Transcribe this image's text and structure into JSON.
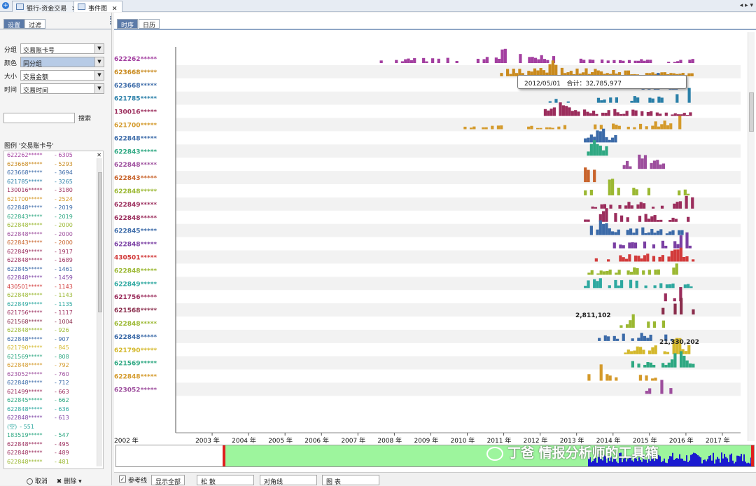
{
  "tabs": [
    {
      "label": "银行-资金交易",
      "active": false
    },
    {
      "label": "事件图",
      "active": true
    }
  ],
  "left_panel": {
    "tabs": [
      "设置",
      "过滤"
    ],
    "fields": [
      {
        "label": "分组",
        "value": "交易账卡号"
      },
      {
        "label": "颜色",
        "value": "同分组"
      },
      {
        "label": "大小",
        "value": "交易金额"
      },
      {
        "label": "时间",
        "value": "交易时间"
      }
    ],
    "search_button": "搜索",
    "legend_title": "图例 '交易账卡号'",
    "legend_items": [
      {
        "name": "622262*****",
        "count": "6305",
        "color": "#a33fa0"
      },
      {
        "name": "623668*****",
        "count": "5293",
        "color": "#c98a1e"
      },
      {
        "name": "623668*****",
        "count": "3694",
        "color": "#3b6aa8"
      },
      {
        "name": "621785*****",
        "count": "3265",
        "color": "#2a7fa8"
      },
      {
        "name": "130016*****",
        "count": "3180",
        "color": "#9b2d5c"
      },
      {
        "name": "621700*****",
        "count": "2524",
        "color": "#d49a2b"
      },
      {
        "name": "622848*****",
        "count": "2019",
        "color": "#3b6aa8"
      },
      {
        "name": "622843*****",
        "count": "2019",
        "color": "#2ea882"
      },
      {
        "name": "622848*****",
        "count": "2000",
        "color": "#9bb832"
      },
      {
        "name": "622848*****",
        "count": "2000",
        "color": "#9d4e9d"
      },
      {
        "name": "622843*****",
        "count": "2000",
        "color": "#c8632b"
      },
      {
        "name": "622849*****",
        "count": "1917",
        "color": "#9b2d5c"
      },
      {
        "name": "622848*****",
        "count": "1689",
        "color": "#9b2d5c"
      },
      {
        "name": "622845*****",
        "count": "1461",
        "color": "#3b6aa8"
      },
      {
        "name": "622848*****",
        "count": "1459",
        "color": "#7a3fa3"
      },
      {
        "name": "430501*****",
        "count": "1143",
        "color": "#d23b3b"
      },
      {
        "name": "622848*****",
        "count": "1143",
        "color": "#9bb832"
      },
      {
        "name": "622849*****",
        "count": "1135",
        "color": "#2ea8a0"
      },
      {
        "name": "621756*****",
        "count": "1117",
        "color": "#9b2d5c"
      },
      {
        "name": "621568*****",
        "count": "1004",
        "color": "#8a2d4c"
      },
      {
        "name": "622848*****",
        "count": "926",
        "color": "#9bb832"
      },
      {
        "name": "622848*****",
        "count": "907",
        "color": "#3b6aa8"
      },
      {
        "name": "621790*****",
        "count": "845",
        "color": "#d4b82b"
      },
      {
        "name": "621569*****",
        "count": "808",
        "color": "#2ea882"
      },
      {
        "name": "622848*****",
        "count": "792",
        "color": "#d49a2b"
      },
      {
        "name": "623052*****",
        "count": "760",
        "color": "#9d4e9d"
      },
      {
        "name": "622848*****",
        "count": "712",
        "color": "#3b6aa8"
      },
      {
        "name": "621499*****",
        "count": "663",
        "color": "#9b2d5c"
      },
      {
        "name": "622845*****",
        "count": "662",
        "color": "#2ea882"
      },
      {
        "name": "622848*****",
        "count": "636",
        "color": "#2ea8a0"
      },
      {
        "name": "622848*****",
        "count": "613",
        "color": "#7a3fa3"
      },
      {
        "name": "(空)",
        "count": "551",
        "color": "#2ea8a0",
        "plain": true
      },
      {
        "name": "183519*****",
        "count": "547",
        "color": "#2ea882"
      },
      {
        "name": "622848*****",
        "count": "495",
        "color": "#9b2d5c"
      },
      {
        "name": "622848*****",
        "count": "489",
        "color": "#9b2d5c"
      },
      {
        "name": "622848*****",
        "count": "481",
        "color": "#9bb832"
      }
    ],
    "footer": {
      "cancel": "取消",
      "delete": "删除"
    }
  },
  "view_tabs": [
    "时序",
    "日历"
  ],
  "tooltip": {
    "date": "2012/05/01",
    "sum_label": "合计：",
    "sum_value": "32,785,977"
  },
  "annotations": [
    "2,811,102",
    "21,330,202"
  ],
  "chart_data": {
    "type": "bar",
    "x_ticks": [
      "2002 年",
      "2003 年",
      "2004 年",
      "2005 年",
      "2006 年",
      "2007 年",
      "2008 年",
      "2009 年",
      "2010 年",
      "2011 年",
      "2012 年",
      "2013 年",
      "2014 年",
      "2015 年",
      "2016 年",
      "2017 年"
    ],
    "rows": [
      {
        "label": "622262*****",
        "color": "#a33fa0",
        "start": 2007.6,
        "end": 2016.2,
        "peak": 2011.0,
        "density": 0.55
      },
      {
        "label": "623668*****",
        "color": "#c98a1e",
        "start": 2010.9,
        "end": 2016.2,
        "peak": 2012.3,
        "density": 0.9
      },
      {
        "label": "623668*****",
        "color": "#3b6aa8",
        "start": 2014.7,
        "end": 2015.7,
        "peak": 2015.2,
        "density": 0.35
      },
      {
        "label": "621785*****",
        "color": "#2a7fa8",
        "start": 2011.9,
        "end": 2016.2,
        "peak": 2016.0,
        "density": 0.25
      },
      {
        "label": "130016*****",
        "color": "#9b2d5c",
        "start": 2012.1,
        "end": 2016.1,
        "peak": 2012.6,
        "density": 0.8
      },
      {
        "label": "621700*****",
        "color": "#d49a2b",
        "start": 2009.9,
        "end": 2015.9,
        "peak": 2015.9,
        "density": 0.45
      },
      {
        "label": "622848*****",
        "color": "#3b6aa8",
        "start": 2013.2,
        "end": 2014.1,
        "peak": 2013.6,
        "density": 0.9
      },
      {
        "label": "622843*****",
        "color": "#2ea882",
        "start": 2013.2,
        "end": 2013.8,
        "peak": 2013.5,
        "density": 0.7
      },
      {
        "label": "622848*****",
        "color": "#9d4e9d",
        "start": 2014.1,
        "end": 2015.4,
        "peak": 2014.8,
        "density": 0.7
      },
      {
        "label": "622843*****",
        "color": "#c8632b",
        "start": 2013.2,
        "end": 2013.5,
        "peak": 2013.3,
        "density": 0.9
      },
      {
        "label": "622848*****",
        "color": "#9bb832",
        "start": 2013.2,
        "end": 2016.1,
        "peak": 2013.9,
        "density": 0.5
      },
      {
        "label": "622849*****",
        "color": "#9b2d5c",
        "start": 2013.4,
        "end": 2016.2,
        "peak": 2016.0,
        "density": 0.5
      },
      {
        "label": "622848*****",
        "color": "#9b2d5c",
        "start": 2013.2,
        "end": 2016.1,
        "peak": 2013.8,
        "density": 0.5
      },
      {
        "label": "622845*****",
        "color": "#3b6aa8",
        "start": 2013.2,
        "end": 2016.1,
        "peak": 2013.7,
        "density": 0.6
      },
      {
        "label": "622848*****",
        "color": "#7a3fa3",
        "start": 2013.5,
        "end": 2016.2,
        "peak": 2015.9,
        "density": 0.5
      },
      {
        "label": "430501*****",
        "color": "#d23b3b",
        "start": 2013.5,
        "end": 2016.2,
        "peak": 2015.7,
        "density": 0.6
      },
      {
        "label": "622848*****",
        "color": "#9bb832",
        "start": 2013.3,
        "end": 2016.2,
        "peak": 2015.8,
        "density": 0.55
      },
      {
        "label": "622849*****",
        "color": "#2ea8a0",
        "start": 2013.2,
        "end": 2016.2,
        "peak": 2013.7,
        "density": 0.6
      },
      {
        "label": "621756*****",
        "color": "#9b2d5c",
        "start": 2015.4,
        "end": 2016.1,
        "peak": 2015.9,
        "density": 0.2
      },
      {
        "label": "621568*****",
        "color": "#8a2d4c",
        "start": 2015.0,
        "end": 2016.2,
        "peak": 2015.8,
        "density": 0.5
      },
      {
        "label": "622848*****",
        "color": "#9bb832",
        "start": 2014.1,
        "end": 2015.4,
        "peak": 2014.6,
        "density": 0.6
      },
      {
        "label": "622848*****",
        "color": "#3b6aa8",
        "start": 2013.5,
        "end": 2015.6,
        "peak": 2015.2,
        "density": 0.4
      },
      {
        "label": "621790*****",
        "color": "#d4b82b",
        "start": 2014.3,
        "end": 2016.2,
        "peak": 2015.7,
        "density": 0.6
      },
      {
        "label": "621569*****",
        "color": "#2ea882",
        "start": 2014.5,
        "end": 2016.2,
        "peak": 2015.8,
        "density": 0.6
      },
      {
        "label": "622848*****",
        "color": "#d49a2b",
        "start": 2013.3,
        "end": 2015.9,
        "peak": 2013.6,
        "density": 0.3
      },
      {
        "label": "623052*****",
        "color": "#9d4e9d",
        "start": 2014.8,
        "end": 2015.8,
        "peak": 2015.2,
        "density": 0.5
      }
    ]
  },
  "overview": {
    "bg": "#9df59d",
    "fill": "#1a1ad0",
    "marker": "#e01f1f"
  },
  "watermark": "丁爸 情报分析师的工具箱",
  "bottom_bar": {
    "checkbox_label": "参考线",
    "show_all": "显示全部",
    "scatter": "松 散",
    "diagonal": "对角线",
    "chart": "图 表"
  }
}
